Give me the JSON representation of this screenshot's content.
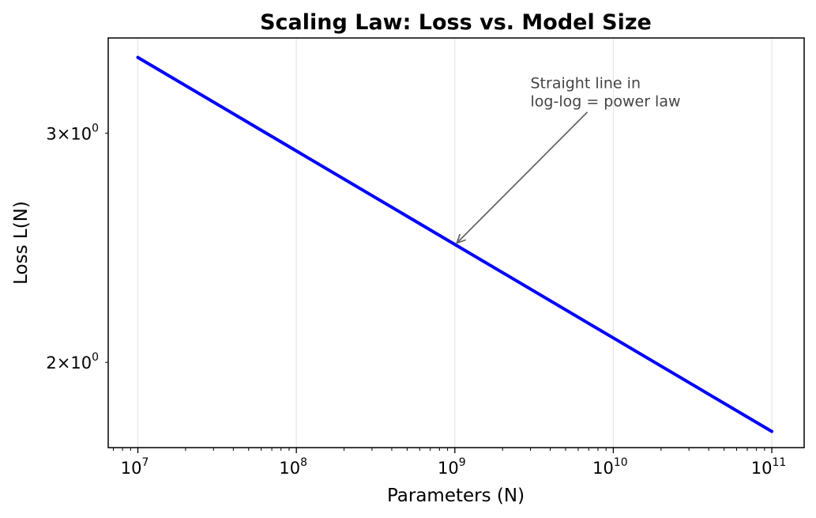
{
  "chart_data": {
    "type": "line",
    "title": "Scaling Law: Loss vs. Model Size",
    "xlabel": "Parameters (N)",
    "ylabel": "Loss L(N)",
    "xscale": "log",
    "yscale": "log",
    "xlim": [
      6500000,
      160000000000
    ],
    "ylim": [
      1.72,
      3.55
    ],
    "x_ticks": [
      {
        "value": 10000000,
        "base": "10",
        "exp": "7"
      },
      {
        "value": 100000000,
        "base": "10",
        "exp": "8"
      },
      {
        "value": 1000000000,
        "base": "10",
        "exp": "9"
      },
      {
        "value": 10000000000,
        "base": "10",
        "exp": "10"
      },
      {
        "value": 100000000000,
        "base": "10",
        "exp": "11"
      }
    ],
    "y_ticks": [
      {
        "value": 3,
        "mant": "3",
        "base": "10",
        "exp": "0"
      },
      {
        "value": 2,
        "mant": "2",
        "base": "10",
        "exp": "0"
      }
    ],
    "grid": "x-major",
    "series": [
      {
        "name": "L(N)",
        "color": "#0000ff",
        "x": [
          10000000,
          100000000000
        ],
        "y": [
          3.43,
          1.77
        ]
      }
    ],
    "annotation": {
      "lines": [
        "Straight line in",
        "log-log = power law"
      ],
      "text_x": 3000000000,
      "text_y": 3.22,
      "point_x": 1030000000,
      "point_y": 2.47
    },
    "colors": {
      "line": "#0000ff",
      "grid": "#e6e6e6",
      "annotation": "#444444",
      "arrow": "#666666"
    }
  }
}
